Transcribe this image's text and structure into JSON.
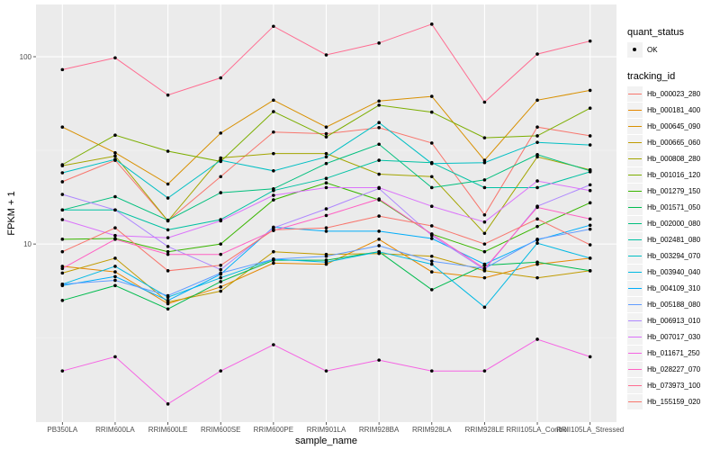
{
  "chart_data": {
    "type": "line",
    "title": "",
    "xlabel": "sample_name",
    "ylabel": "FPKM + 1",
    "y_scale": "log10",
    "ylim": [
      1.12,
      190
    ],
    "y_ticks": [
      10,
      100
    ],
    "y_tick_labels": [
      "10",
      "100"
    ],
    "grid": true,
    "legend_position": "right",
    "categories": [
      "PB350LA",
      "RRIM600LA",
      "RRIM600LE",
      "RRIM600SE",
      "RRIM600PE",
      "RRIM901LA",
      "RRIM928BA",
      "RRIM928LA",
      "RRIM928LE",
      "RRII105LA_Control",
      "RRII105LA_Stressed"
    ],
    "shape_legend": {
      "title": "quant_status",
      "entries": [
        "OK"
      ]
    },
    "color_legend_title": "tracking_id",
    "series": [
      {
        "name": "Hb_000023_280",
        "color": "#F8766D",
        "values": [
          21.5,
          28.0,
          13.3,
          22.9,
          39.6,
          38.8,
          41.8,
          34.6,
          14.3,
          42.1,
          37.8
        ]
      },
      {
        "name": "Hb_000181_400",
        "color": "#E58700",
        "values": [
          7.6,
          7.1,
          4.8,
          5.9,
          7.9,
          7.8,
          10.6,
          7.1,
          6.6,
          7.8,
          8.4
        ]
      },
      {
        "name": "Hb_000645_090",
        "color": "#D89000",
        "values": [
          42.1,
          30.7,
          20.9,
          39.1,
          58.6,
          42.1,
          58.0,
          61.4,
          28.0,
          58.6,
          66.1
        ]
      },
      {
        "name": "Hb_000665_060",
        "color": "#C09B00",
        "values": [
          7.0,
          8.4,
          4.9,
          5.6,
          9.1,
          8.8,
          8.9,
          8.6,
          7.2,
          6.6,
          7.2
        ]
      },
      {
        "name": "Hb_000808_280",
        "color": "#A3A500",
        "values": [
          26.2,
          29.5,
          13.3,
          28.8,
          30.4,
          30.4,
          23.6,
          22.9,
          11.4,
          29.2,
          24.9
        ]
      },
      {
        "name": "Hb_001016_120",
        "color": "#7CAE00",
        "values": [
          26.5,
          38.1,
          31.3,
          27.6,
          50.9,
          37.3,
          55.1,
          50.6,
          36.9,
          37.8,
          53.1
        ]
      },
      {
        "name": "Hb_001279_150",
        "color": "#39B600",
        "values": [
          10.6,
          10.7,
          9.1,
          10.0,
          17.2,
          21.2,
          17.2,
          11.3,
          9.1,
          12.4,
          16.6
        ]
      },
      {
        "name": "Hb_001571_050",
        "color": "#00BB4E",
        "values": [
          5.0,
          6.0,
          4.5,
          6.3,
          8.2,
          8.2,
          9.1,
          5.7,
          7.7,
          8.0,
          7.2
        ]
      },
      {
        "name": "Hb_002000_080",
        "color": "#00BF7D",
        "values": [
          15.2,
          17.9,
          13.4,
          18.8,
          19.7,
          26.9,
          34.1,
          20.0,
          22.0,
          30.0,
          24.6
        ]
      },
      {
        "name": "Hb_002481_080",
        "color": "#00C1A3",
        "values": [
          15.2,
          15.2,
          11.9,
          13.5,
          19.3,
          22.4,
          28.0,
          27.2,
          20.0,
          20.0,
          24.3
        ]
      },
      {
        "name": "Hb_003294_070",
        "color": "#00BFC4",
        "values": [
          24.0,
          28.3,
          17.6,
          28.0,
          24.6,
          29.2,
          44.5,
          26.9,
          27.2,
          34.9,
          33.8
        ]
      },
      {
        "name": "Hb_003940_040",
        "color": "#00B9E3",
        "values": [
          6.1,
          7.6,
          5.2,
          6.6,
          8.3,
          8.0,
          9.1,
          7.8,
          4.6,
          10.1,
          8.4
        ]
      },
      {
        "name": "Hb_004109_310",
        "color": "#00ADFA",
        "values": [
          6.0,
          6.7,
          5.0,
          6.9,
          12.3,
          11.7,
          11.7,
          10.7,
          7.8,
          10.5,
          12.6
        ]
      },
      {
        "name": "Hb_005188_080",
        "color": "#619CFF",
        "values": [
          6.1,
          6.4,
          5.3,
          7.0,
          8.3,
          8.6,
          9.8,
          8.1,
          7.4,
          10.6,
          12.0
        ]
      },
      {
        "name": "Hb_006913_010",
        "color": "#AE87FF",
        "values": [
          18.4,
          15.2,
          9.7,
          7.3,
          12.2,
          15.4,
          19.8,
          11.1,
          7.3,
          15.9,
          20.7
        ]
      },
      {
        "name": "Hb_007017_030",
        "color": "#DB72FB",
        "values": [
          13.5,
          11.1,
          10.8,
          13.3,
          18.2,
          20.0,
          20.0,
          15.9,
          13.1,
          21.7,
          19.3
        ]
      },
      {
        "name": "Hb_011671_250",
        "color": "#F564E3",
        "values": [
          2.1,
          2.5,
          1.4,
          2.1,
          2.9,
          2.1,
          2.4,
          2.1,
          2.1,
          3.1,
          2.5
        ]
      },
      {
        "name": "Hb_028227_070",
        "color": "#FF61C3",
        "values": [
          7.4,
          10.6,
          8.8,
          8.8,
          11.8,
          14.2,
          17.4,
          11.3,
          7.4,
          15.7,
          13.6
        ]
      },
      {
        "name": "Hb_073973_100",
        "color": "#FF6C91",
        "values": [
          85.3,
          98.6,
          62.4,
          77.1,
          145.3,
          102.2,
          118.3,
          149.2,
          57.2,
          103.3,
          121.2
        ]
      },
      {
        "name": "Hb_155159_020",
        "color": "#F8766D",
        "values": [
          9.1,
          12.2,
          7.2,
          7.7,
          11.9,
          12.2,
          14.1,
          12.5,
          10.0,
          13.6,
          9.9
        ]
      }
    ]
  }
}
